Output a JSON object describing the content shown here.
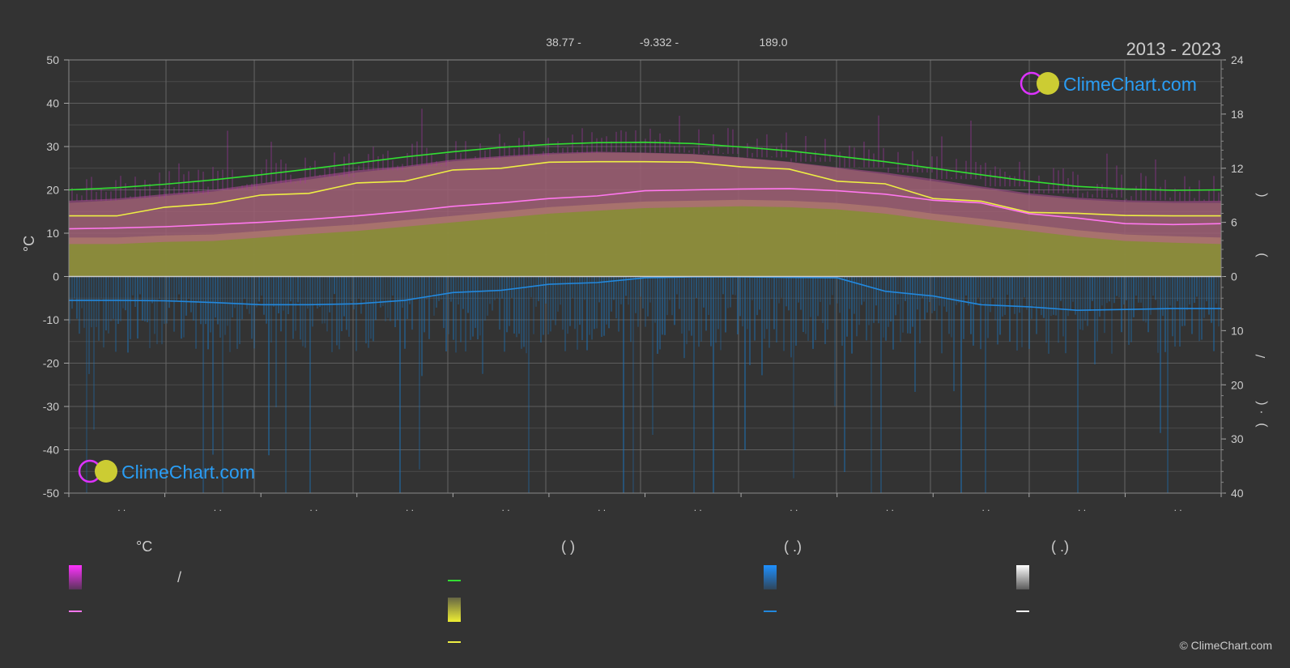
{
  "header": {
    "coords_lat": "38.77 -",
    "coords_lon": "-9.332 -",
    "elevation": "189.0",
    "years": "2013 - 2023"
  },
  "brand": {
    "logo_text": "ClimeChart.com",
    "copyright": "© ClimeChart.com"
  },
  "colors": {
    "background": "#333333",
    "grid": "#555555",
    "daylight": "#33dd33",
    "sunshine": "#eeee44",
    "temp_mean": "#ff77ee",
    "precip": "#2288dd",
    "brand_blue": "#2a9df4",
    "brand_magenta": "#dd33ff"
  },
  "legend": {
    "col1_head": "°C",
    "col1_slash": "/",
    "col2_head": "(            )",
    "col3_head": "(   .)",
    "col4_head": "(   .)"
  },
  "chart_data": {
    "type": "line",
    "left_axis": {
      "label": "°C",
      "ticks": [
        50,
        40,
        30,
        20,
        10,
        0,
        -10,
        -20,
        -30,
        -40,
        -50
      ],
      "range": [
        -50,
        50
      ]
    },
    "right_axis_top": {
      "ticks": [
        24,
        18,
        12,
        6,
        0
      ],
      "range": [
        0,
        24
      ]
    },
    "right_axis_bottom": {
      "ticks": [
        10,
        20,
        30,
        40
      ],
      "range": [
        0,
        40
      ]
    },
    "right_axis_label_glyphs": [
      "(",
      ")",
      "(",
      ")",
      "/",
      "(",
      "·",
      ")"
    ],
    "month_labels": [
      ". .",
      ". .",
      ". .",
      ". .",
      ". .",
      ". .",
      ". .",
      ". .",
      ". .",
      ". .",
      ". .",
      ". ."
    ],
    "x": [
      0,
      0.5,
      1,
      1.5,
      2,
      2.5,
      3,
      3.5,
      4,
      4.5,
      5,
      5.5,
      6,
      6.5,
      7,
      7.5,
      8,
      8.5,
      9,
      9.5,
      10,
      10.5,
      11,
      11.5,
      12
    ],
    "series": [
      {
        "key": "daylight",
        "values": [
          20.0,
          20.5,
          21.3,
          22.3,
          23.5,
          24.8,
          26.2,
          27.6,
          28.8,
          29.8,
          30.5,
          30.9,
          31.0,
          30.7,
          29.9,
          29.0,
          27.8,
          26.5,
          25.0,
          23.5,
          22.0,
          20.8,
          20.2,
          19.9,
          20.0
        ]
      },
      {
        "key": "sunshine",
        "values": [
          14.0,
          14.0,
          16.0,
          16.8,
          18.8,
          19.2,
          21.6,
          22.0,
          24.6,
          25.0,
          26.4,
          26.5,
          26.5,
          26.4,
          25.3,
          24.8,
          22.0,
          21.4,
          18.0,
          17.4,
          14.8,
          14.6,
          14.1,
          14.0,
          14.0
        ]
      },
      {
        "key": "temp_mean",
        "values": [
          11.0,
          11.2,
          11.5,
          12.0,
          12.5,
          13.2,
          14.0,
          15.0,
          16.2,
          17.0,
          18.0,
          18.6,
          19.8,
          20.0,
          20.2,
          20.3,
          19.8,
          19.0,
          17.6,
          17.0,
          14.5,
          13.5,
          12.2,
          12.0,
          12.2
        ]
      },
      {
        "key": "precip",
        "values": [
          -5.5,
          -5.5,
          -5.6,
          -6.0,
          -6.5,
          -6.5,
          -6.3,
          -5.5,
          -3.7,
          -3.2,
          -1.8,
          -1.4,
          -0.3,
          -0.1,
          -0.1,
          -0.2,
          -0.3,
          -3.4,
          -4.5,
          -6.5,
          -7.0,
          -7.8,
          -7.6,
          -7.4,
          -7.4
        ]
      }
    ],
    "bands": {
      "temp_range_max": [
        17.5,
        18.0,
        19.0,
        20.0,
        21.5,
        23.0,
        24.5,
        25.5,
        27.0,
        27.8,
        28.5,
        28.8,
        28.6,
        28.3,
        27.5,
        26.5,
        25.2,
        24.0,
        22.5,
        20.8,
        19.2,
        18.2,
        17.6,
        17.4,
        17.5
      ],
      "temp_range_min": [
        7.5,
        7.5,
        8.0,
        8.2,
        9.0,
        9.8,
        10.5,
        11.5,
        12.5,
        13.5,
        14.5,
        15.2,
        15.8,
        16.0,
        16.2,
        16.0,
        15.5,
        14.5,
        13.0,
        11.8,
        10.5,
        9.2,
        8.2,
        7.8,
        7.5
      ],
      "sunshine_fill_top": [
        17.0,
        17.6,
        18.6,
        19.6,
        21.0,
        22.4,
        24.0,
        25.2,
        26.6,
        27.5,
        28.2,
        28.6,
        28.5,
        28.2,
        27.4,
        26.4,
        25.0,
        23.6,
        22.0,
        20.4,
        18.8,
        17.8,
        17.2,
        17.0,
        17.0
      ]
    }
  }
}
